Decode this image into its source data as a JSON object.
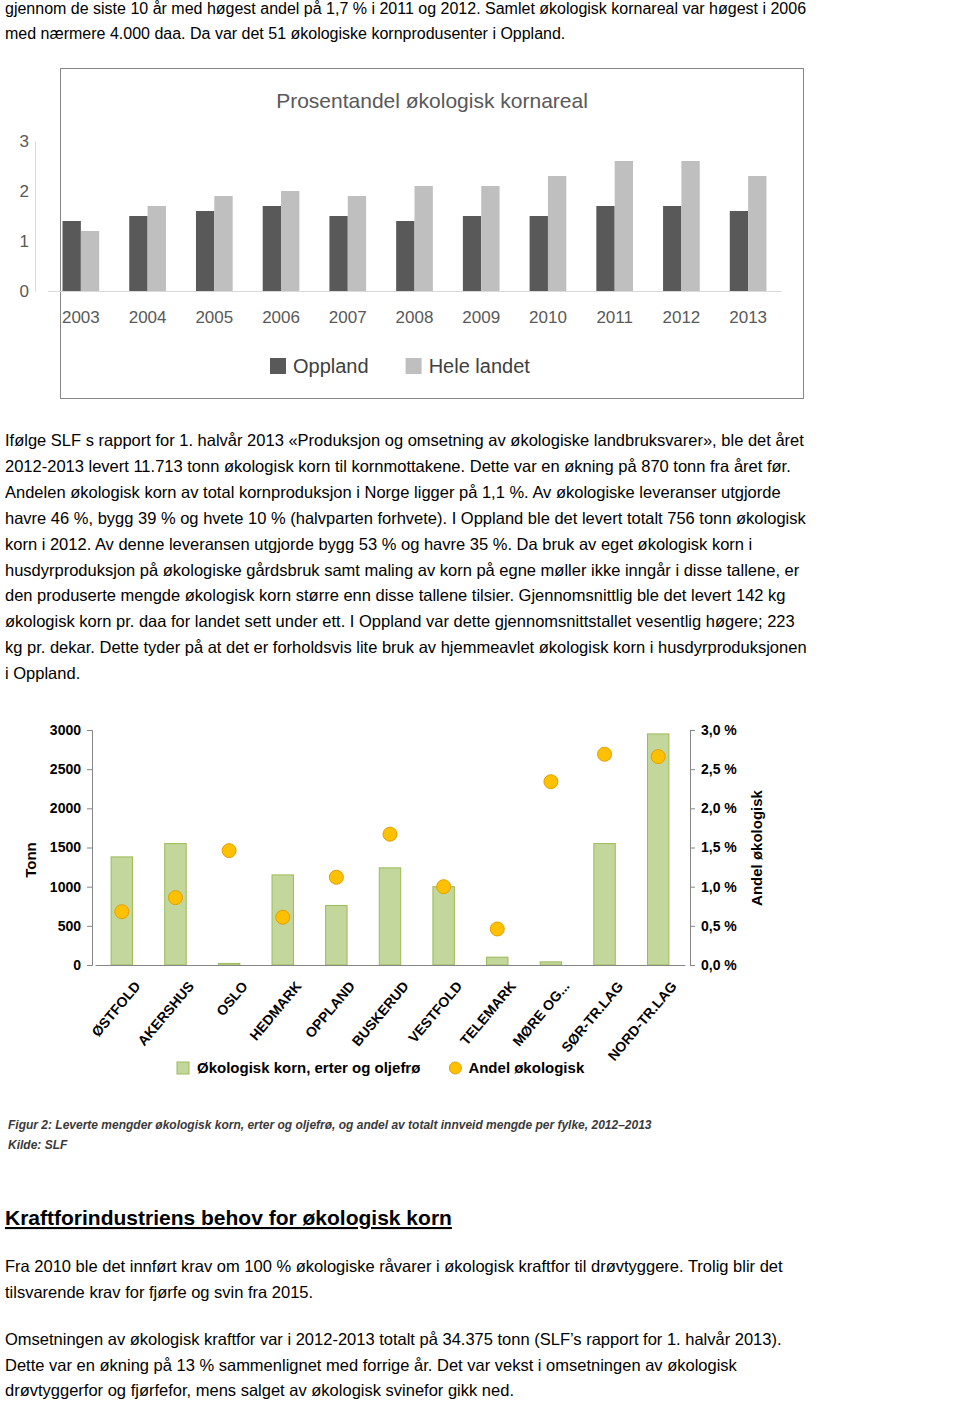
{
  "intro_lines": [
    "gjennom de siste 10 år med høgest andel på 1,7 % i 2011 og 2012. Samlet økologisk kornareal var høgest i 2006",
    "med nærmere 4.000 daa. Da var det 51 økologiske kornprodusenter i Oppland."
  ],
  "chart_data": [
    {
      "type": "bar",
      "title": "Prosentandel økologisk kornareal",
      "categories": [
        "2003",
        "2004",
        "2005",
        "2006",
        "2007",
        "2008",
        "2009",
        "2010",
        "2011",
        "2012",
        "2013"
      ],
      "series": [
        {
          "name": "Oppland",
          "color": "#595959",
          "values": [
            1.4,
            1.5,
            1.6,
            1.7,
            1.5,
            1.4,
            1.5,
            1.5,
            1.7,
            1.7,
            1.6
          ]
        },
        {
          "name": "Hele landet",
          "color": "#bfbfbf",
          "values": [
            1.2,
            1.7,
            1.9,
            2.0,
            1.9,
            2.1,
            2.1,
            2.3,
            2.6,
            2.6,
            2.3
          ]
        }
      ],
      "ylim": [
        0,
        3
      ],
      "yticks": [
        0,
        1,
        2,
        3
      ],
      "grid": false,
      "legend": "bottom"
    },
    {
      "type": "bar",
      "categories": [
        "ØSTFOLD",
        "AKERSHUS",
        "OSLO",
        "HEDMARK",
        "OPPLAND",
        "BUSKERUD",
        "VESTFOLD",
        "TELEMARK",
        "MØRE OG...",
        "SØR-TR.LAG",
        "NORD-TR.LAG"
      ],
      "series": [
        {
          "name": "Økologisk korn, erter og oljefrø",
          "type": "bar",
          "color": "#c3d69b",
          "values": [
            1380,
            1550,
            20,
            1150,
            760,
            1240,
            1000,
            100,
            40,
            1550,
            2950
          ]
        },
        {
          "name": "Andel økologisk",
          "type": "scatter",
          "marker": "circle",
          "color": "#ffc000",
          "axis": "y2",
          "values": [
            0.68,
            0.86,
            1.46,
            0.61,
            1.12,
            1.67,
            1.0,
            0.46,
            2.34,
            2.69,
            2.66
          ]
        }
      ],
      "y_label": "Tonn",
      "y2_label": "Andel økologisk",
      "ylim": [
        0,
        3000
      ],
      "yticks": [
        0,
        500,
        1000,
        1500,
        2000,
        2500,
        3000
      ],
      "y2lim": [
        0,
        3
      ],
      "y2ticks": [
        {
          "value": 0,
          "label": "0,0 %"
        },
        {
          "value": 0.5,
          "label": "0,5 %"
        },
        {
          "value": 1,
          "label": "1,0 %"
        },
        {
          "value": 1.5,
          "label": "1,5 %"
        },
        {
          "value": 2,
          "label": "2,0 %"
        },
        {
          "value": 2.5,
          "label": "2,5 %"
        },
        {
          "value": 3,
          "label": "3,0 %"
        }
      ],
      "grid": false,
      "legend": "bottom"
    }
  ],
  "body_lines": [
    "Ifølge SLF s rapport for 1. halvår 2013 «Produksjon og omsetning av økologiske landbruksvarer», ble det året",
    "2012-2013 levert 11.713 tonn økologisk korn til kornmottakene. Dette var en økning på 870 tonn fra året før.",
    "Andelen økologisk korn av total kornproduksjon i Norge ligger på 1,1 %. Av økologiske leveranser utgjorde",
    "havre 46 %, bygg 39 % og hvete 10 % (halvparten forhvete). I Oppland ble det levert totalt 756 tonn økologisk",
    "korn i 2012. Av denne leveransen utgjorde bygg 53 % og havre 35 %. Da bruk av eget økologisk korn i",
    "husdyrproduksjon på økologiske gårdsbruk samt maling av korn på egne møller ikke inngår i disse tallene, er",
    "den produserte mengde økologisk korn større enn disse tallene tilsier. Gjennomsnittlig ble det levert 142 kg",
    "økologisk korn pr. daa for landet sett under ett. I Oppland var dette gjennomsnittstallet vesentlig høgere; 223",
    "kg pr. dekar. Dette tyder på at det er forholdsvis lite bruk av hjemmeavlet økologisk korn i husdyrproduksjonen",
    "i Oppland."
  ],
  "figure_caption": "Figur 2: Leverte mengder økologisk korn, erter og oljefrø, og andel av totalt innveid mengde per fylke, 2012–2013",
  "figure_source": "Kilde: SLF",
  "heading": "Kraftforindustriens behov for økologisk korn",
  "section_paragraphs": [
    [
      "Fra 2010 ble det innført krav om 100 % økologiske råvarer i økologisk kraftfor til drøvtyggere. Trolig blir det",
      "tilsvarende krav for fjørfe og svin fra 2015."
    ],
    [
      "Omsetningen av økologisk kraftfor var i 2012-2013 totalt på 34.375 tonn (SLF’s rapport for 1. halvår 2013).",
      "Dette var en økning på 13 % sammenlignet med forrige år. Det var vekst i omsetningen av økologisk",
      "drøvtyggerfor og fjørfefor, mens salget av økologisk svinefor gikk ned."
    ]
  ]
}
